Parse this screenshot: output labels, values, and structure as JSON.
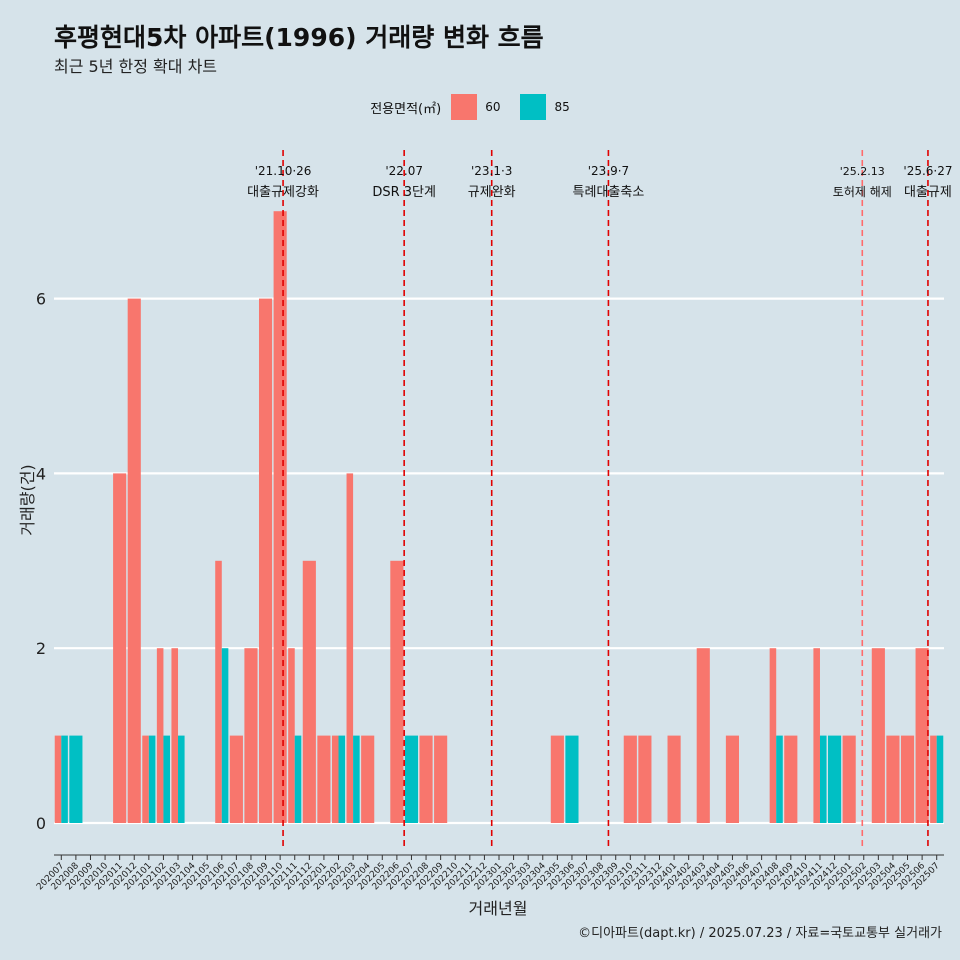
{
  "title": "후평현대5차 아파트(1996) 거래량 변화 흐름",
  "subtitle": "최근 5년 한정 확대 차트",
  "legend": {
    "title": "전용면적(㎡)",
    "items": [
      {
        "label": "60",
        "color": "#f8766d"
      },
      {
        "label": "85",
        "color": "#00bfc4"
      }
    ]
  },
  "caption": "©디아파트(dapt.kr) / 2025.07.23 / 자료=국토교통부 실거래가",
  "chart_data": {
    "type": "bar",
    "xlabel": "거래년월",
    "ylabel": "거래량(건)",
    "ylim": [
      0,
      7
    ],
    "yticks": [
      0,
      2,
      4,
      6
    ],
    "categories": [
      "202007",
      "202008",
      "202009",
      "202010",
      "202011",
      "202012",
      "202101",
      "202102",
      "202103",
      "202104",
      "202105",
      "202106",
      "202107",
      "202108",
      "202109",
      "202110",
      "202111",
      "202112",
      "202201",
      "202202",
      "202203",
      "202204",
      "202205",
      "202206",
      "202207",
      "202208",
      "202209",
      "202210",
      "202211",
      "202212",
      "202301",
      "202302",
      "202303",
      "202304",
      "202305",
      "202306",
      "202307",
      "202308",
      "202309",
      "202310",
      "202311",
      "202312",
      "202401",
      "202402",
      "202403",
      "202404",
      "202405",
      "202406",
      "202407",
      "202408",
      "202409",
      "202410",
      "202411",
      "202412",
      "202501",
      "202502",
      "202503",
      "202504",
      "202505",
      "202506",
      "202507"
    ],
    "series": [
      {
        "name": "60",
        "color": "#f8766d",
        "values": [
          1,
          0,
          0,
          0,
          4,
          6,
          1,
          2,
          2,
          0,
          0,
          3,
          1,
          2,
          6,
          7,
          2,
          3,
          1,
          1,
          4,
          1,
          0,
          3,
          0,
          1,
          1,
          0,
          0,
          0,
          0,
          0,
          0,
          0,
          1,
          0,
          0,
          0,
          0,
          1,
          1,
          0,
          1,
          0,
          2,
          0,
          1,
          0,
          0,
          2,
          1,
          0,
          2,
          0,
          1,
          0,
          2,
          1,
          1,
          2,
          1
        ]
      },
      {
        "name": "85",
        "color": "#00bfc4",
        "values": [
          1,
          1,
          0,
          0,
          0,
          0,
          1,
          1,
          1,
          0,
          0,
          2,
          0,
          0,
          0,
          0,
          1,
          0,
          0,
          1,
          1,
          0,
          0,
          0,
          1,
          0,
          0,
          0,
          0,
          0,
          0,
          0,
          0,
          0,
          0,
          1,
          0,
          0,
          0,
          0,
          0,
          0,
          0,
          0,
          0,
          0,
          0,
          0,
          0,
          1,
          0,
          0,
          1,
          1,
          0,
          0,
          0,
          0,
          0,
          0,
          1
        ]
      }
    ],
    "annotations": [
      {
        "date": "'21.10·26",
        "label": "대출규제강화",
        "x": "202110",
        "pos": 0.7,
        "line": "#e00000"
      },
      {
        "date": "'22.07",
        "label": "DSR 3단계",
        "x": "202207",
        "pos": 0.0,
        "line": "#e00000"
      },
      {
        "date": "'23.1·3",
        "label": "규제완화",
        "x": "202301",
        "pos": 0.0,
        "line": "#e00000"
      },
      {
        "date": "'23.9·7",
        "label": "특례대출축소",
        "x": "202309",
        "pos": 0.0,
        "line": "#e00000"
      },
      {
        "date": "'25.2.13",
        "label": "토허제 해제",
        "x": "202502",
        "pos": 0.4,
        "line": "#ff6b6b"
      },
      {
        "date": "'25.6·27",
        "label": "대출규제",
        "x": "202506",
        "pos": 0.9,
        "line": "#e00000"
      }
    ]
  }
}
